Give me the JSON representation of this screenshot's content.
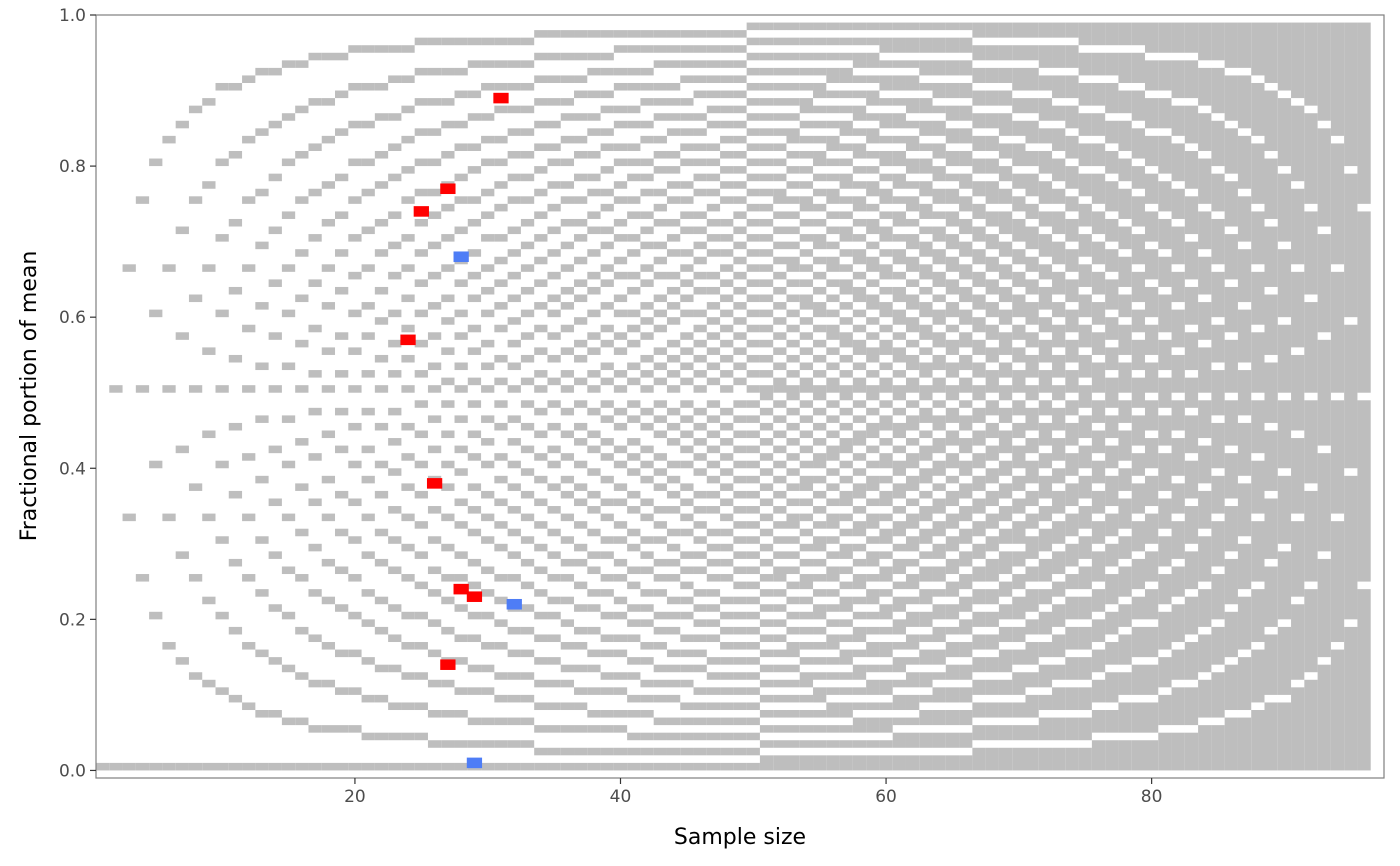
{
  "chart_data": {
    "type": "heatmap",
    "title": "",
    "xlabel": "Sample size",
    "ylabel": "Fractional portion of mean",
    "xlim": [
      0.5,
      97.5
    ],
    "ylim": [
      -0.01,
      1.0
    ],
    "x_ticks": [
      20,
      40,
      60,
      80
    ],
    "y_ticks": [
      0.0,
      0.2,
      0.4,
      0.6,
      0.8,
      1.0
    ],
    "x_tick_labels": [
      "20",
      "40",
      "60",
      "80"
    ],
    "y_tick_labels": [
      "0.0",
      "0.2",
      "0.4",
      "0.6",
      "0.8",
      "1.0"
    ],
    "grid": false,
    "legend": "none",
    "background_grid": {
      "description": "gray tiles mark achievable fractional means for each sample size (n = 1 to 96)",
      "n_min": 1,
      "n_max": 96,
      "color": "#bebebe"
    },
    "highlighted_points": [
      {
        "x": 31,
        "y": 0.89,
        "color": "red"
      },
      {
        "x": 27,
        "y": 0.77,
        "color": "red"
      },
      {
        "x": 25,
        "y": 0.74,
        "color": "red"
      },
      {
        "x": 28,
        "y": 0.68,
        "color": "blue"
      },
      {
        "x": 24,
        "y": 0.57,
        "color": "red"
      },
      {
        "x": 26,
        "y": 0.38,
        "color": "red"
      },
      {
        "x": 28,
        "y": 0.24,
        "color": "red"
      },
      {
        "x": 29,
        "y": 0.23,
        "color": "red"
      },
      {
        "x": 32,
        "y": 0.22,
        "color": "blue"
      },
      {
        "x": 27,
        "y": 0.14,
        "color": "red"
      },
      {
        "x": 29,
        "y": 0.01,
        "color": "blue"
      }
    ],
    "colors": {
      "grid_tile": "#bebebe",
      "red": "#ff0000",
      "blue": "#4e7df6",
      "panel_border": "#7f7f7f",
      "tick": "#333333"
    }
  }
}
